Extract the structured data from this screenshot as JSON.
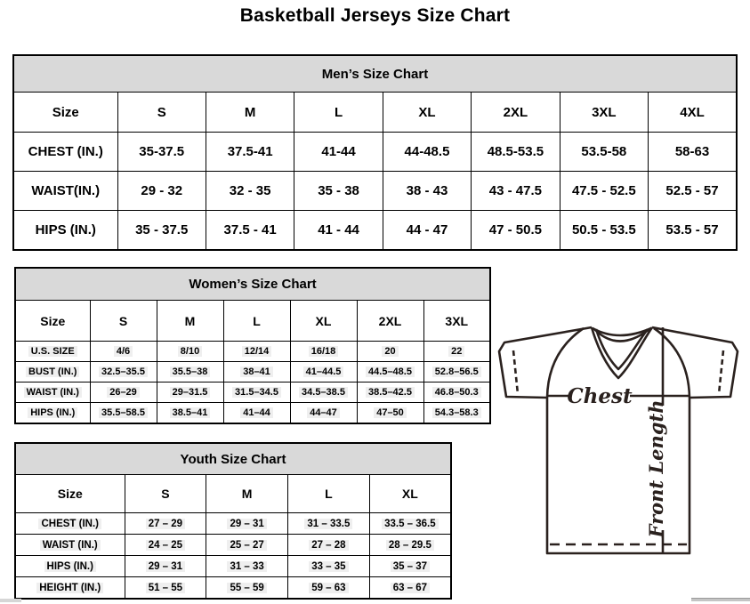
{
  "page": {
    "title": "Basketball Jerseys Size Chart"
  },
  "tables": [
    {
      "id": "mens",
      "title": "Men’s Size Chart",
      "columns": [
        "Size",
        "S",
        "M",
        "L",
        "XL",
        "2XL",
        "3XL",
        "4XL"
      ],
      "rows": [
        {
          "label": "CHEST (IN.)",
          "values": [
            "35-37.5",
            "37.5-41",
            "41-44",
            "44-48.5",
            "48.5-53.5",
            "53.5-58",
            "58-63"
          ]
        },
        {
          "label": "WAIST(IN.)",
          "values": [
            "29 - 32",
            "32 - 35",
            "35 - 38",
            "38 - 43",
            "43 - 47.5",
            "47.5 - 52.5",
            "52.5 - 57"
          ]
        },
        {
          "label": "HIPS (IN.)",
          "values": [
            "35 - 37.5",
            "37.5 - 41",
            "41 - 44",
            "44 - 47",
            "47 - 50.5",
            "50.5 - 53.5",
            "53.5 - 57"
          ]
        }
      ]
    },
    {
      "id": "womens",
      "title": "Women’s Size Chart",
      "columns": [
        "Size",
        "S",
        "M",
        "L",
        "XL",
        "2XL",
        "3XL"
      ],
      "rows": [
        {
          "label": "U.S. SIZE",
          "values": [
            "4/6",
            "8/10",
            "12/14",
            "16/18",
            "20",
            "22"
          ]
        },
        {
          "label": "BUST (IN.)",
          "values": [
            "32.5–35.5",
            "35.5–38",
            "38–41",
            "41–44.5",
            "44.5–48.5",
            "52.8–56.5"
          ]
        },
        {
          "label": "WAIST (IN.)",
          "values": [
            "26–29",
            "29–31.5",
            "31.5–34.5",
            "34.5–38.5",
            "38.5–42.5",
            "46.8–50.3"
          ]
        },
        {
          "label": "HIPS (IN.)",
          "values": [
            "35.5–58.5",
            "38.5–41",
            "41–44",
            "44–47",
            "47–50",
            "54.3–58.3"
          ]
        }
      ]
    },
    {
      "id": "youth",
      "title": "Youth Size Chart",
      "columns": [
        "Size",
        "S",
        "M",
        "L",
        "XL"
      ],
      "rows": [
        {
          "label": "CHEST (IN.)",
          "values": [
            "27 – 29",
            "29 – 31",
            "31 – 33.5",
            "33.5 – 36.5"
          ]
        },
        {
          "label": "WAIST (IN.)",
          "values": [
            "24 – 25",
            "25 – 27",
            "27 – 28",
            "28 – 29.5"
          ]
        },
        {
          "label": "HIPS (IN.)",
          "values": [
            "29 – 31",
            "31 – 33",
            "33 – 35",
            "35 – 37"
          ]
        },
        {
          "label": "HEIGHT (IN.)",
          "values": [
            "51 – 55",
            "55 – 59",
            "59 – 63",
            "63 – 67"
          ]
        }
      ]
    }
  ],
  "diagram": {
    "chest_label": "Chest",
    "front_length_label": "Front Length",
    "line_color": "#2a211e"
  },
  "colors": {
    "table_header_bg": "#d9d9d9",
    "border": "#000000",
    "value_shade": "#efefef"
  }
}
